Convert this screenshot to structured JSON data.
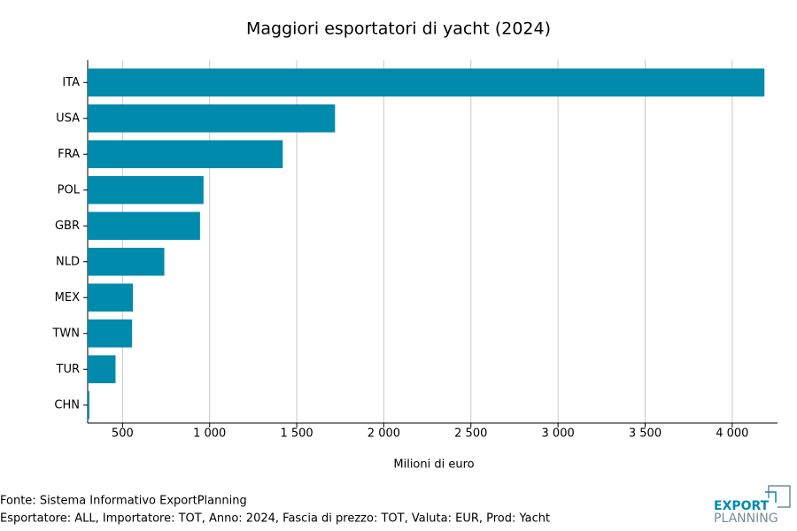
{
  "chart_data": {
    "type": "barh",
    "title": "Maggiori esportatori di yacht (2024)",
    "x_label": "Milioni di euro",
    "categories": [
      "ITA",
      "USA",
      "FRA",
      "POL",
      "GBR",
      "NLD",
      "MEX",
      "TWN",
      "TUR",
      "CHN"
    ],
    "values": [
      4185,
      1720,
      1420,
      965,
      945,
      740,
      560,
      555,
      460,
      310
    ],
    "color": "#008aab",
    "xlim": [
      300,
      4260
    ],
    "xticks": [
      500,
      {
        "value": 1000,
        "label": "1 000"
      },
      {
        "value": 1500,
        "label": "1 500"
      },
      {
        "value": 2000,
        "label": "2 000"
      },
      {
        "value": 2500,
        "label": "2 500"
      },
      {
        "value": 3000,
        "label": "3 000"
      },
      {
        "value": 3500,
        "label": "3 500"
      },
      {
        "value": 4000,
        "label": "4 000"
      }
    ],
    "grid": true
  },
  "footer": {
    "source": "Fonte: Sistema Informativo ExportPlanning",
    "details": "Esportatore: ALL, Importatore: TOT, Anno: 2024, Fascia di prezzo: TOT, Valuta: EUR, Prod: Yacht"
  },
  "logo": {
    "line1": "EXPORT",
    "line2": "PLANNING"
  }
}
